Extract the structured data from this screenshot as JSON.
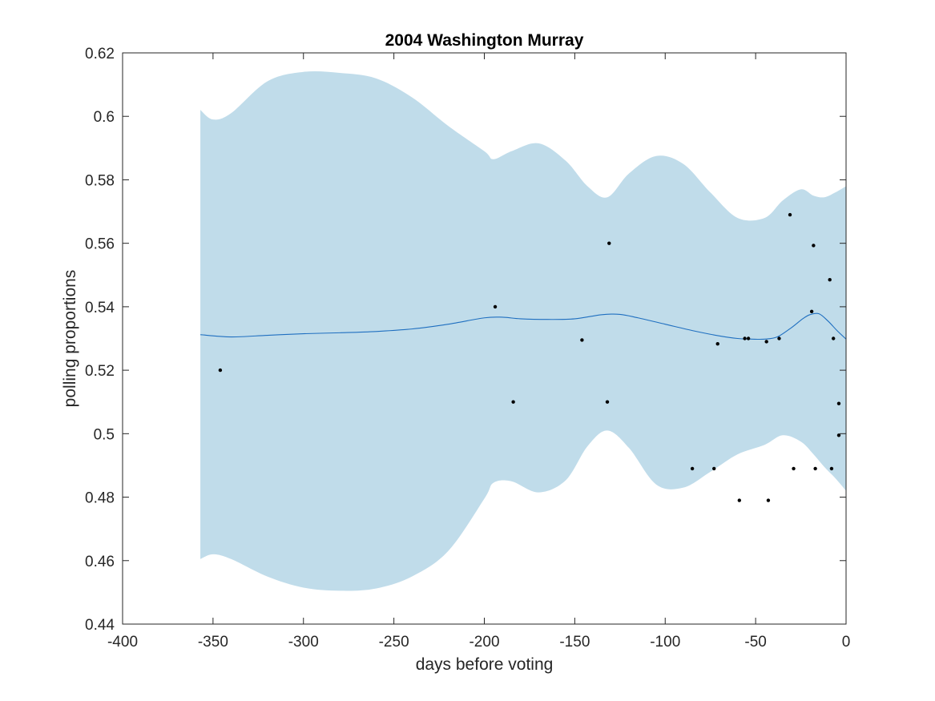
{
  "chart_data": {
    "type": "line",
    "title": "2004 Washington Murray",
    "xlabel": "days before voting",
    "ylabel": "polling proportions",
    "xlim": [
      -400,
      0
    ],
    "ylim": [
      0.44,
      0.62
    ],
    "xticks": [
      -400,
      -350,
      -300,
      -250,
      -200,
      -150,
      -100,
      -50,
      0
    ],
    "yticks": [
      0.44,
      0.46,
      0.48,
      0.5,
      0.52,
      0.54,
      0.56,
      0.58,
      0.6,
      0.62
    ],
    "xtick_labels": [
      "-400",
      "-350",
      "-300",
      "-250",
      "-200",
      "-150",
      "-100",
      "-50",
      "0"
    ],
    "ytick_labels": [
      "0.44",
      "0.46",
      "0.48",
      "0.5",
      "0.52",
      "0.54",
      "0.56",
      "0.58",
      "0.6",
      "0.62"
    ],
    "grid": false,
    "colors": {
      "band": "#c0dcea",
      "line": "#1f6fc0",
      "points": "#000000",
      "axes": "#262626"
    },
    "series": [
      {
        "type": "area-band",
        "x": [
          -357,
          -350,
          -340,
          -320,
          -300,
          -280,
          -260,
          -240,
          -220,
          -200,
          -195,
          -185,
          -170,
          -155,
          -143,
          -132,
          -120,
          -105,
          -90,
          -75,
          -60,
          -45,
          -35,
          -25,
          -18,
          -12,
          -6,
          0
        ],
        "upper": [
          0.602,
          0.599,
          0.601,
          0.611,
          0.614,
          0.6137,
          0.612,
          0.606,
          0.597,
          0.589,
          0.5865,
          0.589,
          0.5915,
          0.586,
          0.578,
          0.5745,
          0.582,
          0.5875,
          0.585,
          0.576,
          0.568,
          0.568,
          0.5735,
          0.577,
          0.575,
          0.5745,
          0.576,
          0.578
        ],
        "lower": [
          0.4605,
          0.462,
          0.4605,
          0.455,
          0.4515,
          0.4505,
          0.4512,
          0.455,
          0.463,
          0.4795,
          0.4845,
          0.485,
          0.4815,
          0.4853,
          0.496,
          0.501,
          0.4955,
          0.484,
          0.483,
          0.488,
          0.4935,
          0.4965,
          0.4995,
          0.4975,
          0.4935,
          0.4895,
          0.486,
          0.482
        ]
      },
      {
        "type": "line",
        "x": [
          -357,
          -340,
          -320,
          -300,
          -280,
          -260,
          -240,
          -220,
          -200,
          -190,
          -180,
          -165,
          -150,
          -135,
          -125,
          -115,
          -100,
          -85,
          -70,
          -60,
          -52,
          -45,
          -38,
          -30,
          -24,
          -20,
          -15,
          -10,
          -5,
          0
        ],
        "y": [
          0.5312,
          0.5305,
          0.531,
          0.5315,
          0.5318,
          0.5322,
          0.533,
          0.5345,
          0.5365,
          0.5367,
          0.5362,
          0.536,
          0.5362,
          0.5375,
          0.5376,
          0.5365,
          0.5345,
          0.5325,
          0.5308,
          0.53,
          0.5298,
          0.5298,
          0.5305,
          0.5335,
          0.5362,
          0.5375,
          0.5378,
          0.5355,
          0.5325,
          0.5298
        ]
      },
      {
        "type": "scatter",
        "x": [
          -346,
          -194,
          -184,
          -146,
          -132,
          -131,
          -85,
          -73,
          -71,
          -59,
          -56,
          -54,
          -44,
          -43,
          -37,
          -31,
          -29,
          -19,
          -18,
          -17,
          -9,
          -8,
          -7,
          -4,
          -4
        ],
        "y": [
          0.52,
          0.54,
          0.51,
          0.5295,
          0.51,
          0.56,
          0.489,
          0.489,
          0.5283,
          0.479,
          0.53,
          0.53,
          0.529,
          0.479,
          0.53,
          0.569,
          0.489,
          0.5385,
          0.5593,
          0.489,
          0.5485,
          0.489,
          0.53,
          0.5095,
          0.4995
        ]
      }
    ]
  }
}
